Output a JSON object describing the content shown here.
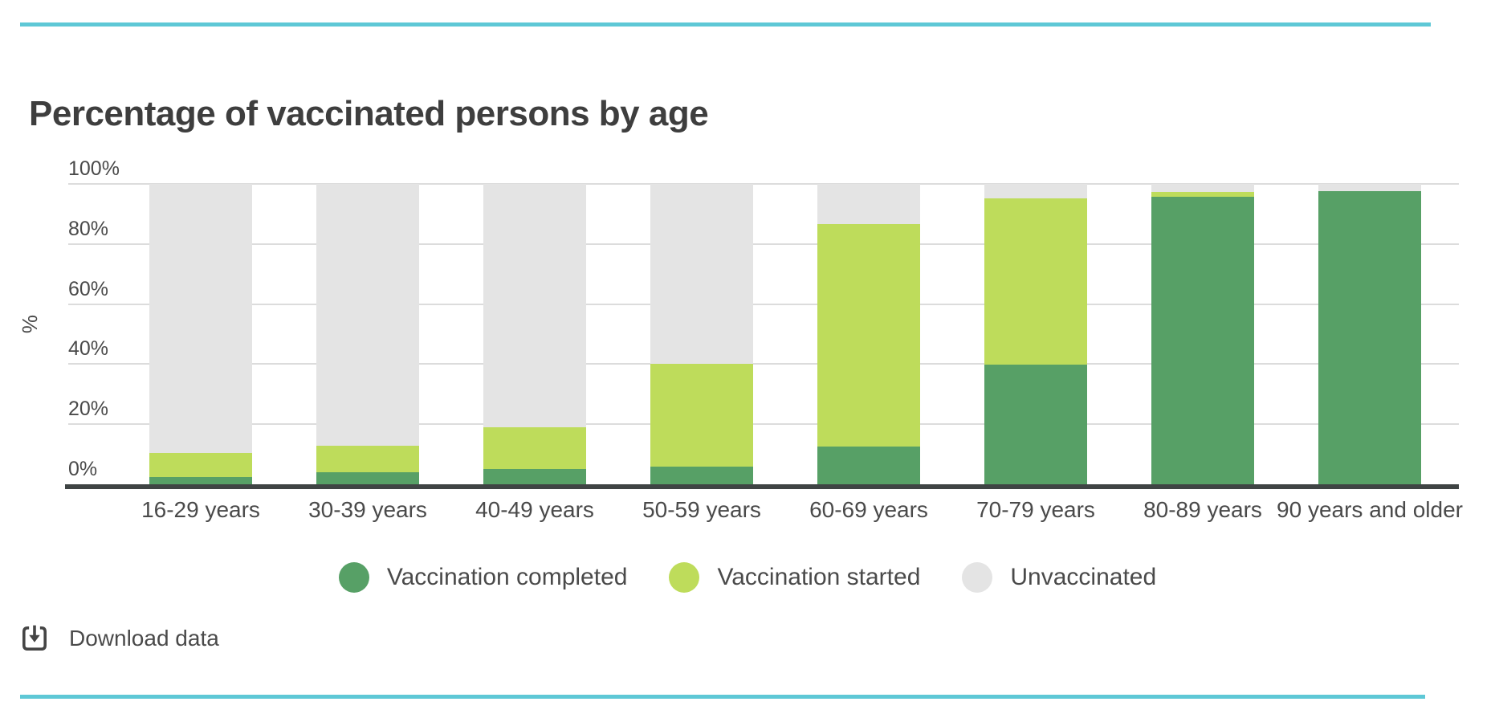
{
  "page": {
    "title": "Percentage of vaccinated persons by age"
  },
  "y_axis": {
    "label": "%",
    "ticks": [
      "0%",
      "20%",
      "40%",
      "60%",
      "80%",
      "100%"
    ],
    "tick_values": [
      0,
      20,
      40,
      60,
      80,
      100
    ]
  },
  "chart_data": {
    "type": "bar",
    "stacked": true,
    "title": "Percentage of vaccinated persons by age",
    "xlabel": "",
    "ylabel": "%",
    "ylim": [
      0,
      100
    ],
    "grid": true,
    "legend_position": "bottom",
    "categories": [
      "16-29 years",
      "30-39 years",
      "40-49 years",
      "50-59 years",
      "60-69 years",
      "70-79 years",
      "80-89 years",
      "90 years and older"
    ],
    "series": [
      {
        "name": "Vaccination completed",
        "values": [
          2.5,
          3.9,
          5.1,
          5.9,
          12.5,
          39.8,
          95.7,
          97.6
        ]
      },
      {
        "name": "Vaccination started",
        "values": [
          7.9,
          8.9,
          14.0,
          34.1,
          74.1,
          55.4,
          1.6,
          0.0
        ]
      },
      {
        "name": "Unvaccinated",
        "values": [
          89.6,
          87.2,
          80.9,
          60.0,
          13.4,
          4.8,
          2.7,
          2.4
        ]
      }
    ]
  },
  "legend": {
    "items": [
      {
        "label": "Vaccination completed",
        "color": "#57a066"
      },
      {
        "label": "Vaccination started",
        "color": "#bedc5b"
      },
      {
        "label": "Unvaccinated",
        "color": "#e4e4e4"
      }
    ]
  },
  "download": {
    "label": "Download data"
  },
  "colors": {
    "completed": "#57a066",
    "started": "#bedc5b",
    "unvaccinated": "#e4e4e4",
    "accent_rule": "#5ec8d6",
    "gridline": "#dcdcdc",
    "axis_line": "#3f4444",
    "title_text": "#3e3e3e",
    "body_text": "#4a4a4a"
  }
}
